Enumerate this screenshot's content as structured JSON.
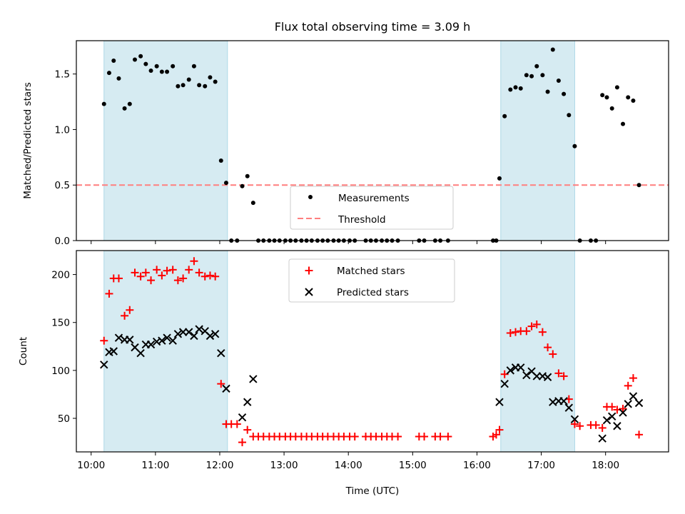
{
  "chart_data": {
    "title": "Flux total observing time = 3.09 h",
    "xlabel": "Time (UTC)",
    "x_tick_labels": [
      "10:00",
      "11:00",
      "12:00",
      "13:00",
      "14:00",
      "15:00",
      "16:00",
      "17:00",
      "18:00"
    ],
    "x_ticks_hours": [
      10,
      11,
      12,
      13,
      14,
      15,
      16,
      17,
      18
    ],
    "xlim_hours": [
      9.77,
      18.98
    ],
    "shaded_intervals_hours": [
      [
        10.2,
        12.12
      ],
      [
        16.37,
        17.52
      ]
    ],
    "shade_color": "#add8e6",
    "panels": [
      {
        "name": "ratio",
        "type": "scatter",
        "ylabel": "Matched/Predicted stars",
        "ylim": [
          0,
          1.8
        ],
        "yticks": [
          0.0,
          0.5,
          1.0,
          1.5
        ],
        "ytick_labels": [
          "0.0",
          "0.5",
          "1.0",
          "1.5"
        ],
        "threshold": 0.5,
        "threshold_color": "#ff7f7f",
        "legend": [
          "Measurements",
          "Threshold"
        ],
        "legend_position": "lower center",
        "series": [
          {
            "name": "Measurements",
            "color": "#000000",
            "marker": "dot",
            "points": [
              [
                10.2,
                1.23
              ],
              [
                10.28,
                1.51
              ],
              [
                10.35,
                1.62
              ],
              [
                10.43,
                1.46
              ],
              [
                10.52,
                1.19
              ],
              [
                10.6,
                1.23
              ],
              [
                10.68,
                1.63
              ],
              [
                10.77,
                1.66
              ],
              [
                10.85,
                1.59
              ],
              [
                10.93,
                1.53
              ],
              [
                11.02,
                1.57
              ],
              [
                11.1,
                1.52
              ],
              [
                11.18,
                1.52
              ],
              [
                11.27,
                1.57
              ],
              [
                11.35,
                1.39
              ],
              [
                11.43,
                1.4
              ],
              [
                11.52,
                1.45
              ],
              [
                11.6,
                1.57
              ],
              [
                11.68,
                1.4
              ],
              [
                11.77,
                1.39
              ],
              [
                11.85,
                1.47
              ],
              [
                11.93,
                1.43
              ],
              [
                12.02,
                0.72
              ],
              [
                12.1,
                0.52
              ],
              [
                12.18,
                0.0
              ],
              [
                12.27,
                0.0
              ],
              [
                12.35,
                0.49
              ],
              [
                12.43,
                0.58
              ],
              [
                12.52,
                0.34
              ],
              [
                12.6,
                0.0
              ],
              [
                12.68,
                0.0
              ],
              [
                12.77,
                0.0
              ],
              [
                12.85,
                0.0
              ],
              [
                12.93,
                0.0
              ],
              [
                13.02,
                0.0
              ],
              [
                13.1,
                0.0
              ],
              [
                13.18,
                0.0
              ],
              [
                13.27,
                0.0
              ],
              [
                13.35,
                0.0
              ],
              [
                13.43,
                0.0
              ],
              [
                13.52,
                0.0
              ],
              [
                13.6,
                0.0
              ],
              [
                13.68,
                0.0
              ],
              [
                13.77,
                0.0
              ],
              [
                13.85,
                0.0
              ],
              [
                13.93,
                0.0
              ],
              [
                14.02,
                0.0
              ],
              [
                14.1,
                0.0
              ],
              [
                14.27,
                0.0
              ],
              [
                14.35,
                0.0
              ],
              [
                14.43,
                0.0
              ],
              [
                14.52,
                0.0
              ],
              [
                14.6,
                0.0
              ],
              [
                14.68,
                0.0
              ],
              [
                14.77,
                0.0
              ],
              [
                15.1,
                0.0
              ],
              [
                15.18,
                0.0
              ],
              [
                15.35,
                0.0
              ],
              [
                15.43,
                0.0
              ],
              [
                15.55,
                0.0
              ],
              [
                16.25,
                0.0
              ],
              [
                16.3,
                0.0
              ],
              [
                16.35,
                0.56
              ],
              [
                16.43,
                1.12
              ],
              [
                16.52,
                1.36
              ],
              [
                16.6,
                1.38
              ],
              [
                16.68,
                1.37
              ],
              [
                16.77,
                1.49
              ],
              [
                16.85,
                1.48
              ],
              [
                16.93,
                1.57
              ],
              [
                17.02,
                1.49
              ],
              [
                17.1,
                1.34
              ],
              [
                17.18,
                1.72
              ],
              [
                17.27,
                1.44
              ],
              [
                17.35,
                1.32
              ],
              [
                17.43,
                1.13
              ],
              [
                17.52,
                0.85
              ],
              [
                17.6,
                0.0
              ],
              [
                17.77,
                0.0
              ],
              [
                17.85,
                0.0
              ],
              [
                17.95,
                1.31
              ],
              [
                18.02,
                1.29
              ],
              [
                18.1,
                1.19
              ],
              [
                18.18,
                1.38
              ],
              [
                18.27,
                1.05
              ],
              [
                18.35,
                1.29
              ],
              [
                18.43,
                1.26
              ],
              [
                18.52,
                0.5
              ]
            ]
          }
        ]
      },
      {
        "name": "counts",
        "type": "scatter",
        "ylabel": "Count",
        "ylim": [
          15,
          225
        ],
        "yticks": [
          50,
          100,
          150,
          200
        ],
        "ytick_labels": [
          "50",
          "100",
          "150",
          "200"
        ],
        "legend": [
          "Matched stars",
          "Predicted stars"
        ],
        "legend_position": "upper center",
        "series": [
          {
            "name": "Matched stars",
            "color": "#ff0000",
            "marker": "plus",
            "points": [
              [
                10.2,
                131
              ],
              [
                10.28,
                180
              ],
              [
                10.35,
                196
              ],
              [
                10.43,
                196
              ],
              [
                10.52,
                157
              ],
              [
                10.6,
                163
              ],
              [
                10.68,
                202
              ],
              [
                10.77,
                198
              ],
              [
                10.85,
                202
              ],
              [
                10.93,
                194
              ],
              [
                11.02,
                205
              ],
              [
                11.1,
                199
              ],
              [
                11.18,
                204
              ],
              [
                11.27,
                205
              ],
              [
                11.35,
                194
              ],
              [
                11.43,
                196
              ],
              [
                11.52,
                205
              ],
              [
                11.6,
                214
              ],
              [
                11.68,
                202
              ],
              [
                11.77,
                198
              ],
              [
                11.85,
                199
              ],
              [
                11.93,
                198
              ],
              [
                12.02,
                86
              ],
              [
                12.1,
                44
              ],
              [
                12.18,
                44
              ],
              [
                12.27,
                44
              ],
              [
                12.35,
                25
              ],
              [
                12.43,
                38
              ],
              [
                12.52,
                31
              ],
              [
                12.6,
                31
              ],
              [
                12.68,
                31
              ],
              [
                12.77,
                31
              ],
              [
                12.85,
                31
              ],
              [
                12.93,
                31
              ],
              [
                13.02,
                31
              ],
              [
                13.1,
                31
              ],
              [
                13.18,
                31
              ],
              [
                13.27,
                31
              ],
              [
                13.35,
                31
              ],
              [
                13.43,
                31
              ],
              [
                13.52,
                31
              ],
              [
                13.6,
                31
              ],
              [
                13.68,
                31
              ],
              [
                13.77,
                31
              ],
              [
                13.85,
                31
              ],
              [
                13.93,
                31
              ],
              [
                14.02,
                31
              ],
              [
                14.1,
                31
              ],
              [
                14.27,
                31
              ],
              [
                14.35,
                31
              ],
              [
                14.43,
                31
              ],
              [
                14.52,
                31
              ],
              [
                14.6,
                31
              ],
              [
                14.68,
                31
              ],
              [
                14.77,
                31
              ],
              [
                15.1,
                31
              ],
              [
                15.18,
                31
              ],
              [
                15.35,
                31
              ],
              [
                15.43,
                31
              ],
              [
                15.55,
                31
              ],
              [
                16.25,
                31
              ],
              [
                16.3,
                33
              ],
              [
                16.35,
                38
              ],
              [
                16.43,
                96
              ],
              [
                16.52,
                139
              ],
              [
                16.6,
                140
              ],
              [
                16.68,
                141
              ],
              [
                16.77,
                141
              ],
              [
                16.85,
                146
              ],
              [
                16.93,
                148
              ],
              [
                17.02,
                140
              ],
              [
                17.1,
                124
              ],
              [
                17.18,
                117
              ],
              [
                17.27,
                97
              ],
              [
                17.35,
                94
              ],
              [
                17.43,
                70
              ],
              [
                17.52,
                44
              ],
              [
                17.6,
                42
              ],
              [
                17.77,
                43
              ],
              [
                17.85,
                43
              ],
              [
                17.95,
                40
              ],
              [
                18.02,
                62
              ],
              [
                18.1,
                62
              ],
              [
                18.18,
                59
              ],
              [
                18.27,
                60
              ],
              [
                18.35,
                84
              ],
              [
                18.43,
                92
              ],
              [
                18.52,
                33
              ]
            ]
          },
          {
            "name": "Predicted stars",
            "color": "#000000",
            "marker": "x",
            "points": [
              [
                10.2,
                106
              ],
              [
                10.28,
                119
              ],
              [
                10.35,
                120
              ],
              [
                10.43,
                134
              ],
              [
                10.52,
                132
              ],
              [
                10.6,
                132
              ],
              [
                10.68,
                124
              ],
              [
                10.77,
                118
              ],
              [
                10.85,
                127
              ],
              [
                10.93,
                127
              ],
              [
                11.02,
                130
              ],
              [
                11.1,
                131
              ],
              [
                11.18,
                134
              ],
              [
                11.27,
                131
              ],
              [
                11.35,
                138
              ],
              [
                11.43,
                140
              ],
              [
                11.52,
                140
              ],
              [
                11.6,
                136
              ],
              [
                11.68,
                143
              ],
              [
                11.77,
                141
              ],
              [
                11.85,
                136
              ],
              [
                11.93,
                138
              ],
              [
                12.02,
                118
              ],
              [
                12.1,
                81
              ],
              [
                12.35,
                51
              ],
              [
                12.43,
                67
              ],
              [
                12.52,
                91
              ],
              [
                16.35,
                67
              ],
              [
                16.43,
                86
              ],
              [
                16.52,
                100
              ],
              [
                16.6,
                103
              ],
              [
                16.68,
                103
              ],
              [
                16.77,
                95
              ],
              [
                16.85,
                99
              ],
              [
                16.93,
                94
              ],
              [
                17.02,
                94
              ],
              [
                17.1,
                93
              ],
              [
                17.18,
                67
              ],
              [
                17.27,
                68
              ],
              [
                17.35,
                68
              ],
              [
                17.43,
                61
              ],
              [
                17.52,
                49
              ],
              [
                17.95,
                29
              ],
              [
                18.02,
                48
              ],
              [
                18.1,
                52
              ],
              [
                18.18,
                42
              ],
              [
                18.27,
                56
              ],
              [
                18.35,
                65
              ],
              [
                18.43,
                73
              ],
              [
                18.52,
                66
              ]
            ]
          }
        ]
      }
    ]
  }
}
